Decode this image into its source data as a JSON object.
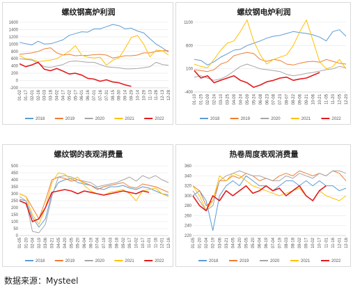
{
  "source_label": "数据来源：Mysteel",
  "series_colors": [
    "#5b9bd5",
    "#ed7d31",
    "#a5a5a5",
    "#ffc000",
    "#e31a1c"
  ],
  "chart_data": [
    {
      "id": "blast_furnace_profit",
      "type": "line",
      "title": "螺纹钢高炉利润",
      "ylim": [
        -200,
        1600
      ],
      "yticks": [
        -200,
        0,
        200,
        400,
        600,
        800,
        1000,
        1200,
        1400,
        1600
      ],
      "xticks": [
        "01-02",
        "01-17",
        "02-01",
        "02-16",
        "03-03",
        "03-18",
        "04-02",
        "04-17",
        "05-02",
        "05-17",
        "06-01",
        "06-16",
        "07-01",
        "07-16",
        "07-31",
        "08-15",
        "08-30",
        "09-14",
        "09-29",
        "10-14",
        "10-29",
        "11-13",
        "11-28",
        "12-13",
        "12-28"
      ],
      "series": [
        {
          "name": "2018",
          "values": [
            1050,
            1010,
            980,
            1080,
            1000,
            1010,
            1060,
            1120,
            1240,
            1290,
            1340,
            1330,
            1420,
            1420,
            1480,
            1540,
            1510,
            1420,
            1440,
            1360,
            1310,
            1150,
            1000,
            900,
            780
          ]
        },
        {
          "name": "2019",
          "values": [
            720,
            740,
            760,
            800,
            870,
            900,
            760,
            700,
            720,
            680,
            690,
            690,
            710,
            720,
            700,
            620,
            650,
            680,
            680,
            700,
            760,
            760,
            800,
            820,
            820
          ]
        },
        {
          "name": "2020",
          "values": [
            600,
            580,
            560,
            480,
            380,
            360,
            400,
            440,
            520,
            540,
            520,
            500,
            500,
            440,
            380,
            360,
            350,
            320,
            320,
            330,
            350,
            380,
            500,
            440,
            420
          ]
        },
        {
          "name": "2021",
          "values": [
            680,
            600,
            580,
            520,
            540,
            560,
            600,
            700,
            800,
            960,
            700,
            640,
            620,
            640,
            420,
            560,
            620,
            880,
            1180,
            1240,
            1000,
            650,
            840,
            820,
            700
          ]
        },
        {
          "name": "2022",
          "values": [
            460,
            380,
            430,
            500,
            310,
            270,
            330,
            260,
            180,
            200,
            150,
            60,
            40,
            -20,
            20,
            -40,
            -60,
            -120,
            -160,
            null,
            null,
            null,
            null,
            null,
            null
          ]
        }
      ]
    },
    {
      "id": "eaf_profit",
      "type": "line",
      "title": "螺纹钢电炉利润",
      "ylim": [
        -400,
        1100
      ],
      "yticks": [
        -400,
        100,
        600,
        1100
      ],
      "xticks": [
        "01-10",
        "01-25",
        "02-09",
        "02-24",
        "03-10",
        "03-25",
        "04-09",
        "04-24",
        "05-09",
        "05-24",
        "06-08",
        "06-23",
        "07-08",
        "07-23",
        "08-07",
        "08-22",
        "09-06",
        "09-21",
        "10-06",
        "10-21",
        "11-05",
        "11-20",
        "12-05",
        "12-20"
      ],
      "series": [
        {
          "name": "2018",
          "values": [
            300,
            280,
            180,
            250,
            350,
            420,
            500,
            520,
            600,
            650,
            700,
            760,
            800,
            820,
            860,
            900,
            880,
            860,
            830,
            780,
            700,
            900,
            940,
            800
          ]
        },
        {
          "name": "2019",
          "values": [
            80,
            60,
            40,
            80,
            200,
            250,
            380,
            420,
            450,
            430,
            300,
            260,
            300,
            280,
            200,
            180,
            220,
            250,
            260,
            240,
            300,
            260,
            220,
            200
          ]
        },
        {
          "name": "2020",
          "values": [
            -80,
            -50,
            -100,
            -150,
            -120,
            -50,
            50,
            150,
            200,
            150,
            100,
            80,
            60,
            40,
            -20,
            -50,
            -30,
            0,
            20,
            50,
            80,
            100,
            150,
            120
          ]
        },
        {
          "name": "2021",
          "values": [
            200,
            150,
            120,
            300,
            500,
            650,
            700,
            900,
            1150,
            700,
            400,
            200,
            300,
            350,
            400,
            600,
            900,
            1150,
            700,
            250,
            100,
            150,
            300,
            100
          ]
        },
        {
          "name": "2022",
          "values": [
            60,
            -100,
            -50,
            -200,
            -150,
            -100,
            -50,
            -150,
            -200,
            -300,
            -250,
            -180,
            -150,
            -100,
            -80,
            -150,
            -120,
            -100,
            -40,
            20,
            null,
            null,
            null,
            null
          ]
        }
      ]
    },
    {
      "id": "rebar_apparent_consumption",
      "type": "line",
      "title": "螺纹钢的表观消费量",
      "ylim": [
        0,
        500
      ],
      "yticks": [
        0,
        50,
        100,
        150,
        200,
        250,
        300,
        350,
        400,
        450,
        500
      ],
      "xticks": [
        "01-05",
        "01-20",
        "02-04",
        "02-19",
        "03-06",
        "03-21",
        "04-05",
        "04-20",
        "05-05",
        "05-20",
        "06-04",
        "06-19",
        "07-04",
        "07-19",
        "08-03",
        "08-18",
        "09-02",
        "09-17",
        "10-02",
        "10-17",
        "11-01",
        "11-16",
        "12-01",
        "12-16"
      ],
      "series": [
        {
          "name": "2018",
          "values": [
            260,
            250,
            130,
            60,
            120,
            300,
            380,
            400,
            410,
            380,
            370,
            360,
            340,
            330,
            350,
            350,
            360,
            340,
            330,
            350,
            340,
            320,
            300,
            290
          ]
        },
        {
          "name": "2019",
          "values": [
            300,
            280,
            200,
            120,
            250,
            400,
            420,
            410,
            390,
            400,
            380,
            360,
            330,
            350,
            360,
            370,
            380,
            350,
            340,
            370,
            360,
            350,
            330,
            310
          ]
        },
        {
          "name": "2020",
          "values": [
            280,
            250,
            30,
            20,
            80,
            280,
            420,
            430,
            420,
            400,
            390,
            380,
            350,
            360,
            370,
            380,
            400,
            420,
            390,
            430,
            410,
            430,
            400,
            380
          ]
        },
        {
          "name": "2021",
          "values": [
            300,
            280,
            150,
            80,
            200,
            380,
            450,
            440,
            400,
            420,
            360,
            320,
            300,
            290,
            310,
            320,
            330,
            300,
            250,
            320,
            330,
            340,
            300,
            280
          ]
        },
        {
          "name": "2022",
          "values": [
            250,
            230,
            100,
            120,
            200,
            310,
            320,
            330,
            320,
            300,
            320,
            310,
            300,
            290,
            300,
            310,
            320,
            310,
            300,
            320,
            310,
            null,
            null,
            null
          ]
        }
      ]
    },
    {
      "id": "hrc_weekly_apparent_consumption",
      "type": "line",
      "title": "热卷周度表观消费量",
      "ylim": [
        220,
        360
      ],
      "yticks": [
        220,
        240,
        260,
        280,
        300,
        320,
        340,
        360
      ],
      "xticks": [
        "01-05",
        "01-20",
        "02-04",
        "02-19",
        "03-06",
        "03-21",
        "04-05",
        "04-20",
        "05-05",
        "05-20",
        "06-04",
        "06-19",
        "07-04",
        "07-19",
        "08-03",
        "08-18",
        "09-02",
        "09-17",
        "10-02",
        "10-17",
        "11-01",
        "11-16",
        "12-01",
        "12-16"
      ],
      "series": [
        {
          "name": "2018",
          "values": [
            300,
            310,
            290,
            230,
            300,
            320,
            330,
            320,
            340,
            330,
            320,
            320,
            310,
            320,
            330,
            330,
            320,
            330,
            320,
            330,
            320,
            320,
            310,
            315
          ]
        },
        {
          "name": "2019",
          "values": [
            320,
            310,
            280,
            290,
            330,
            330,
            340,
            335,
            345,
            340,
            330,
            335,
            330,
            340,
            345,
            340,
            350,
            345,
            340,
            345,
            340,
            350,
            345,
            330
          ]
        },
        {
          "name": "2020",
          "values": [
            310,
            290,
            270,
            280,
            330,
            340,
            345,
            350,
            345,
            340,
            340,
            335,
            330,
            330,
            340,
            335,
            345,
            340,
            335,
            345,
            340,
            350,
            350,
            345
          ]
        },
        {
          "name": "2021",
          "values": [
            320,
            300,
            270,
            290,
            340,
            330,
            345,
            340,
            330,
            320,
            315,
            310,
            305,
            300,
            305,
            310,
            315,
            300,
            290,
            310,
            300,
            295,
            290,
            300
          ]
        },
        {
          "name": "2022",
          "values": [
            300,
            280,
            270,
            300,
            290,
            310,
            300,
            310,
            320,
            305,
            310,
            320,
            310,
            315,
            300,
            310,
            320,
            300,
            290,
            310,
            320,
            null,
            null,
            null
          ]
        }
      ]
    }
  ]
}
